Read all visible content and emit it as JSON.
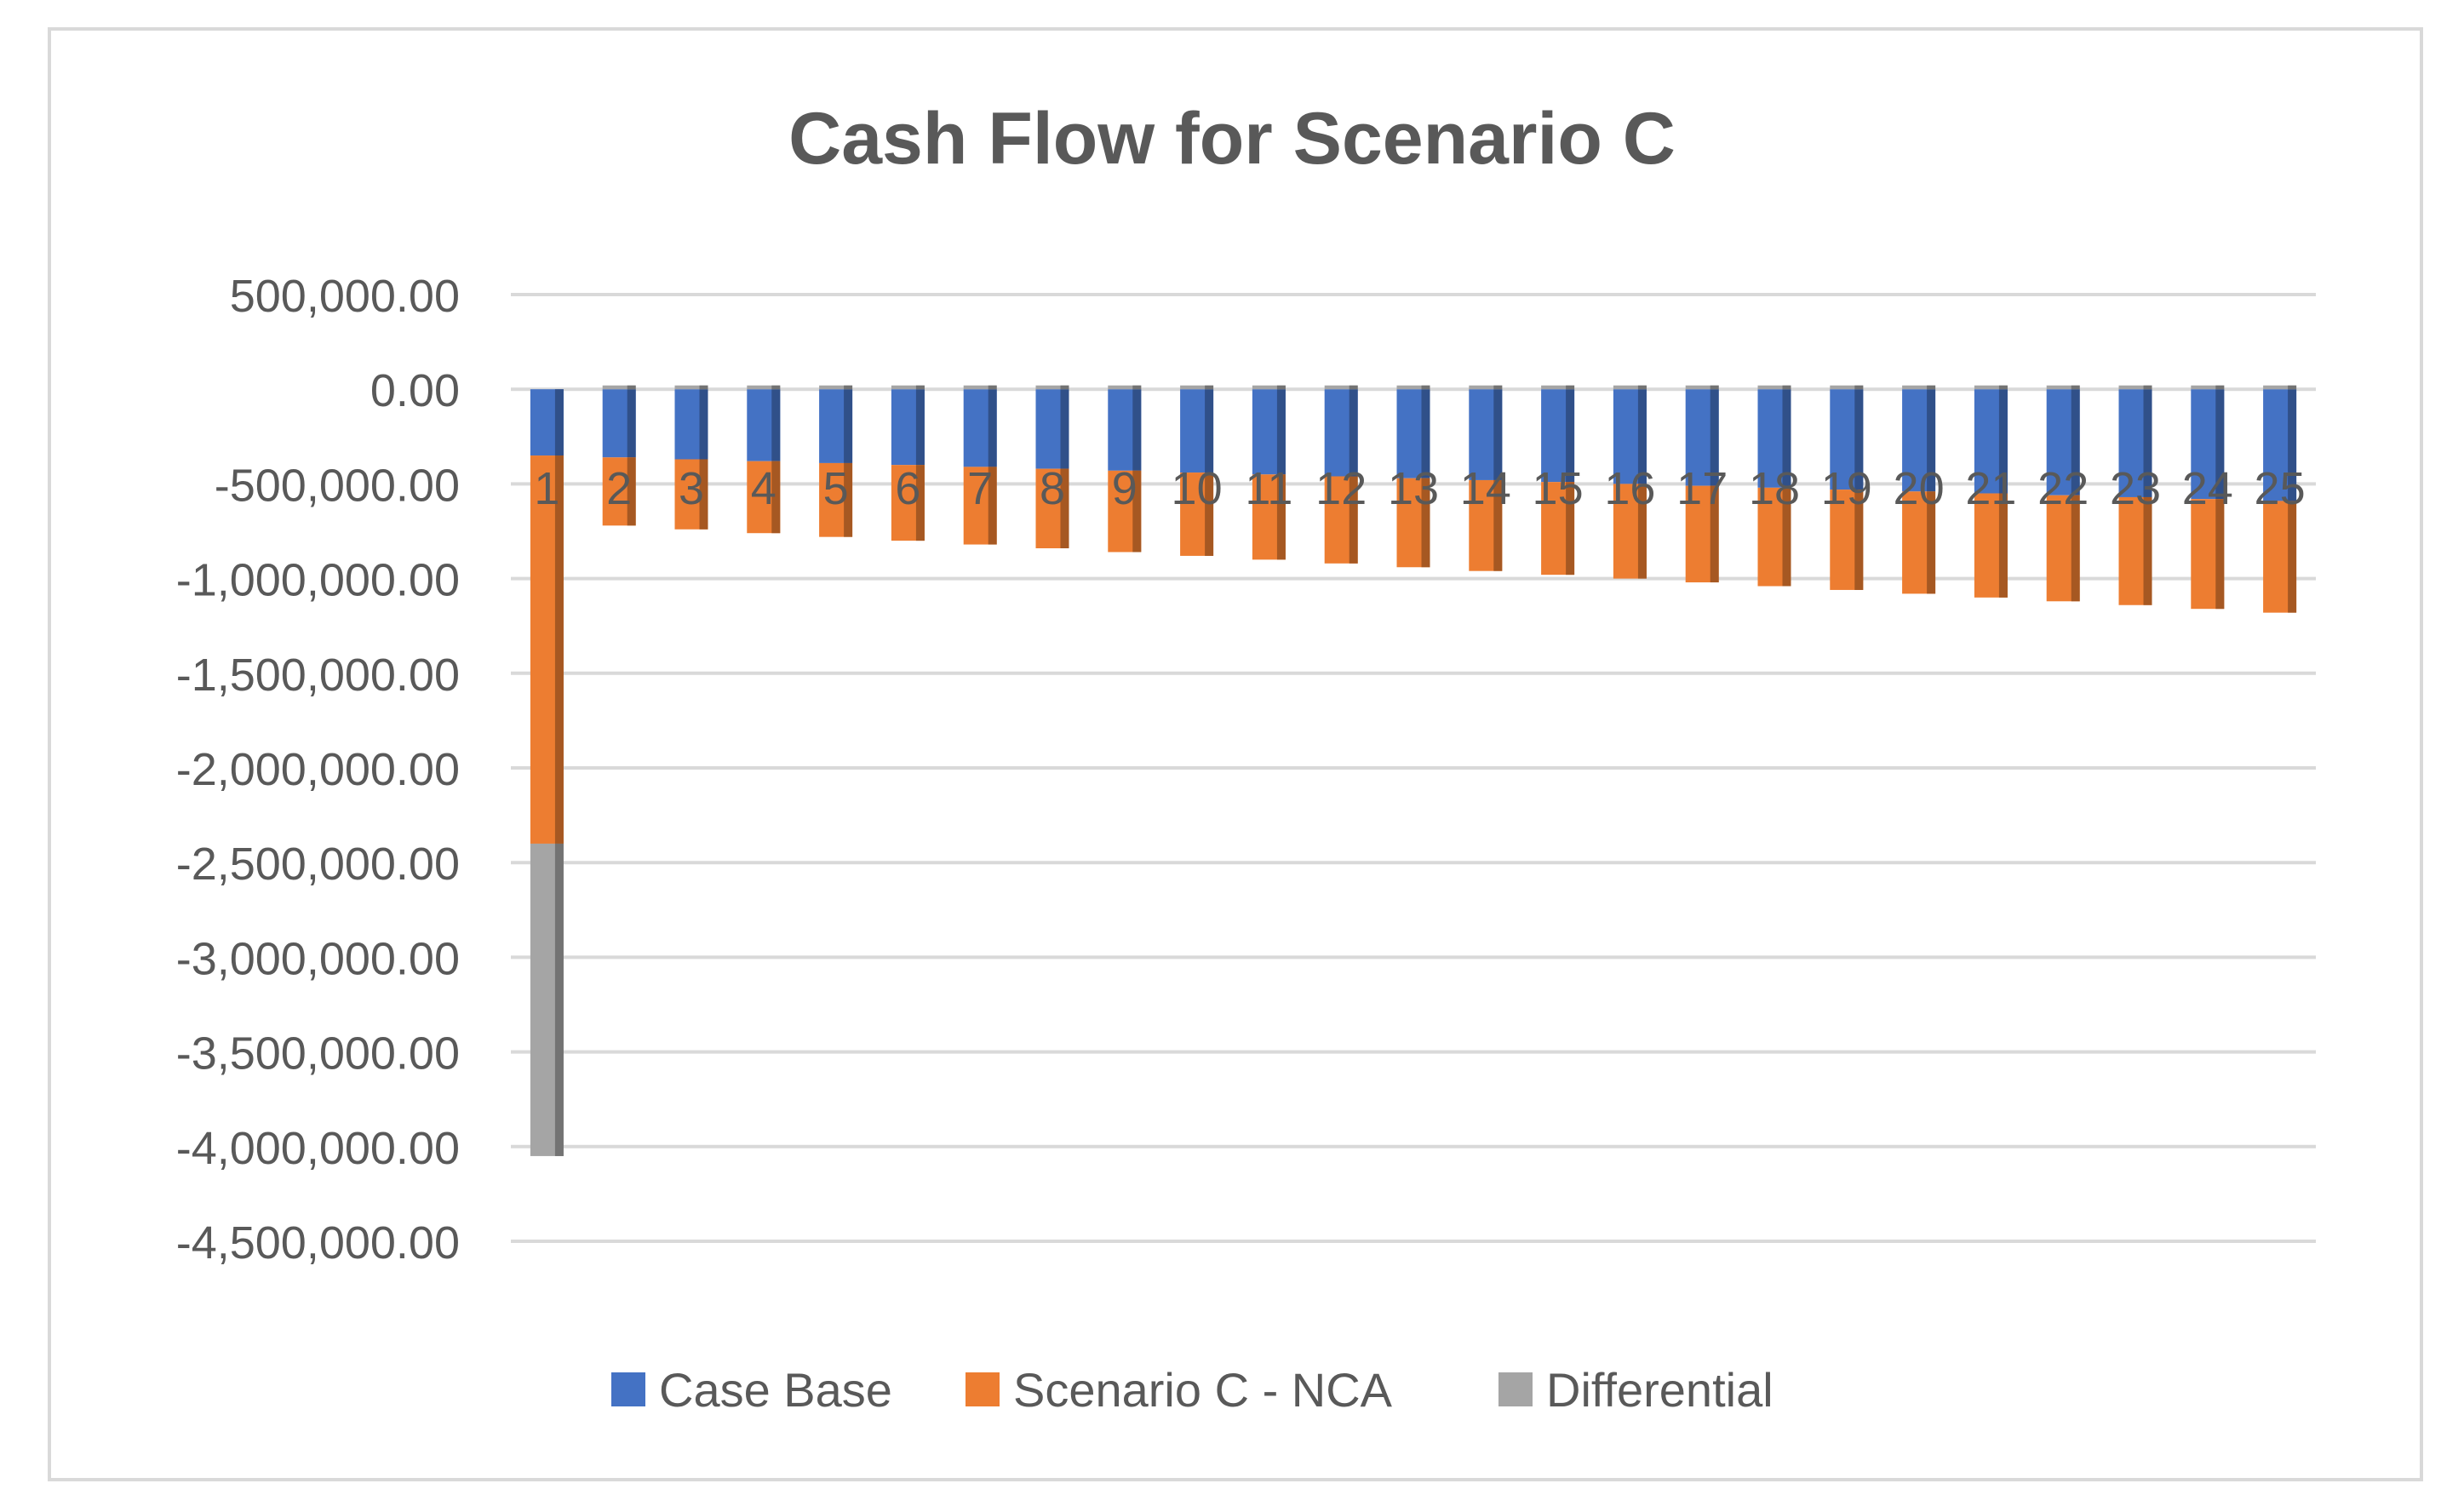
{
  "chart_data": {
    "type": "bar",
    "stacked": true,
    "title": "Cash Flow for Scenario C",
    "xlabel": "",
    "ylabel": "",
    "ylim": [
      -4500000,
      500000
    ],
    "y_ticks": [
      500000,
      0,
      -500000,
      -1000000,
      -1500000,
      -2000000,
      -2500000,
      -3000000,
      -3500000,
      -4000000,
      -4500000
    ],
    "y_tick_labels": [
      "500,000.00",
      "0.00",
      "-500,000.00",
      "-1,000,000.00",
      "-1,500,000.00",
      "-2,000,000.00",
      "-2,500,000.00",
      "-3,000,000.00",
      "-3,500,000.00",
      "-4,000,000.00",
      "-4,500,000.00"
    ],
    "grid": true,
    "legend_position": "bottom",
    "categories": [
      "1",
      "2",
      "3",
      "4",
      "5",
      "6",
      "7",
      "8",
      "9",
      "10",
      "11",
      "12",
      "13",
      "14",
      "15",
      "16",
      "17",
      "18",
      "19",
      "20",
      "21",
      "22",
      "23",
      "24",
      "25"
    ],
    "series": [
      {
        "name": "Case Base",
        "color": "#4472c4",
        "values": [
          -350000,
          -360000,
          -370000,
          -380000,
          -390000,
          -400000,
          -410000,
          -420000,
          -430000,
          -440000,
          -450000,
          -460000,
          -470000,
          -480000,
          -490000,
          -500000,
          -510000,
          -520000,
          -530000,
          -540000,
          -550000,
          -560000,
          -570000,
          -580000,
          -590000
        ]
      },
      {
        "name": "Scenario C - NCA",
        "color": "#ed7d31",
        "values": [
          -2050000,
          -360000,
          -370000,
          -380000,
          -390000,
          -400000,
          -410000,
          -420000,
          -430000,
          -440000,
          -450000,
          -460000,
          -470000,
          -480000,
          -490000,
          -500000,
          -510000,
          -520000,
          -530000,
          -540000,
          -550000,
          -560000,
          -570000,
          -580000,
          -590000
        ]
      },
      {
        "name": "Differential",
        "color": "#a5a5a5",
        "values": [
          -1650000,
          20000,
          20000,
          20000,
          20000,
          20000,
          20000,
          20000,
          20000,
          20000,
          20000,
          20000,
          20000,
          20000,
          20000,
          20000,
          20000,
          20000,
          20000,
          20000,
          20000,
          20000,
          20000,
          20000,
          20000
        ]
      }
    ]
  }
}
